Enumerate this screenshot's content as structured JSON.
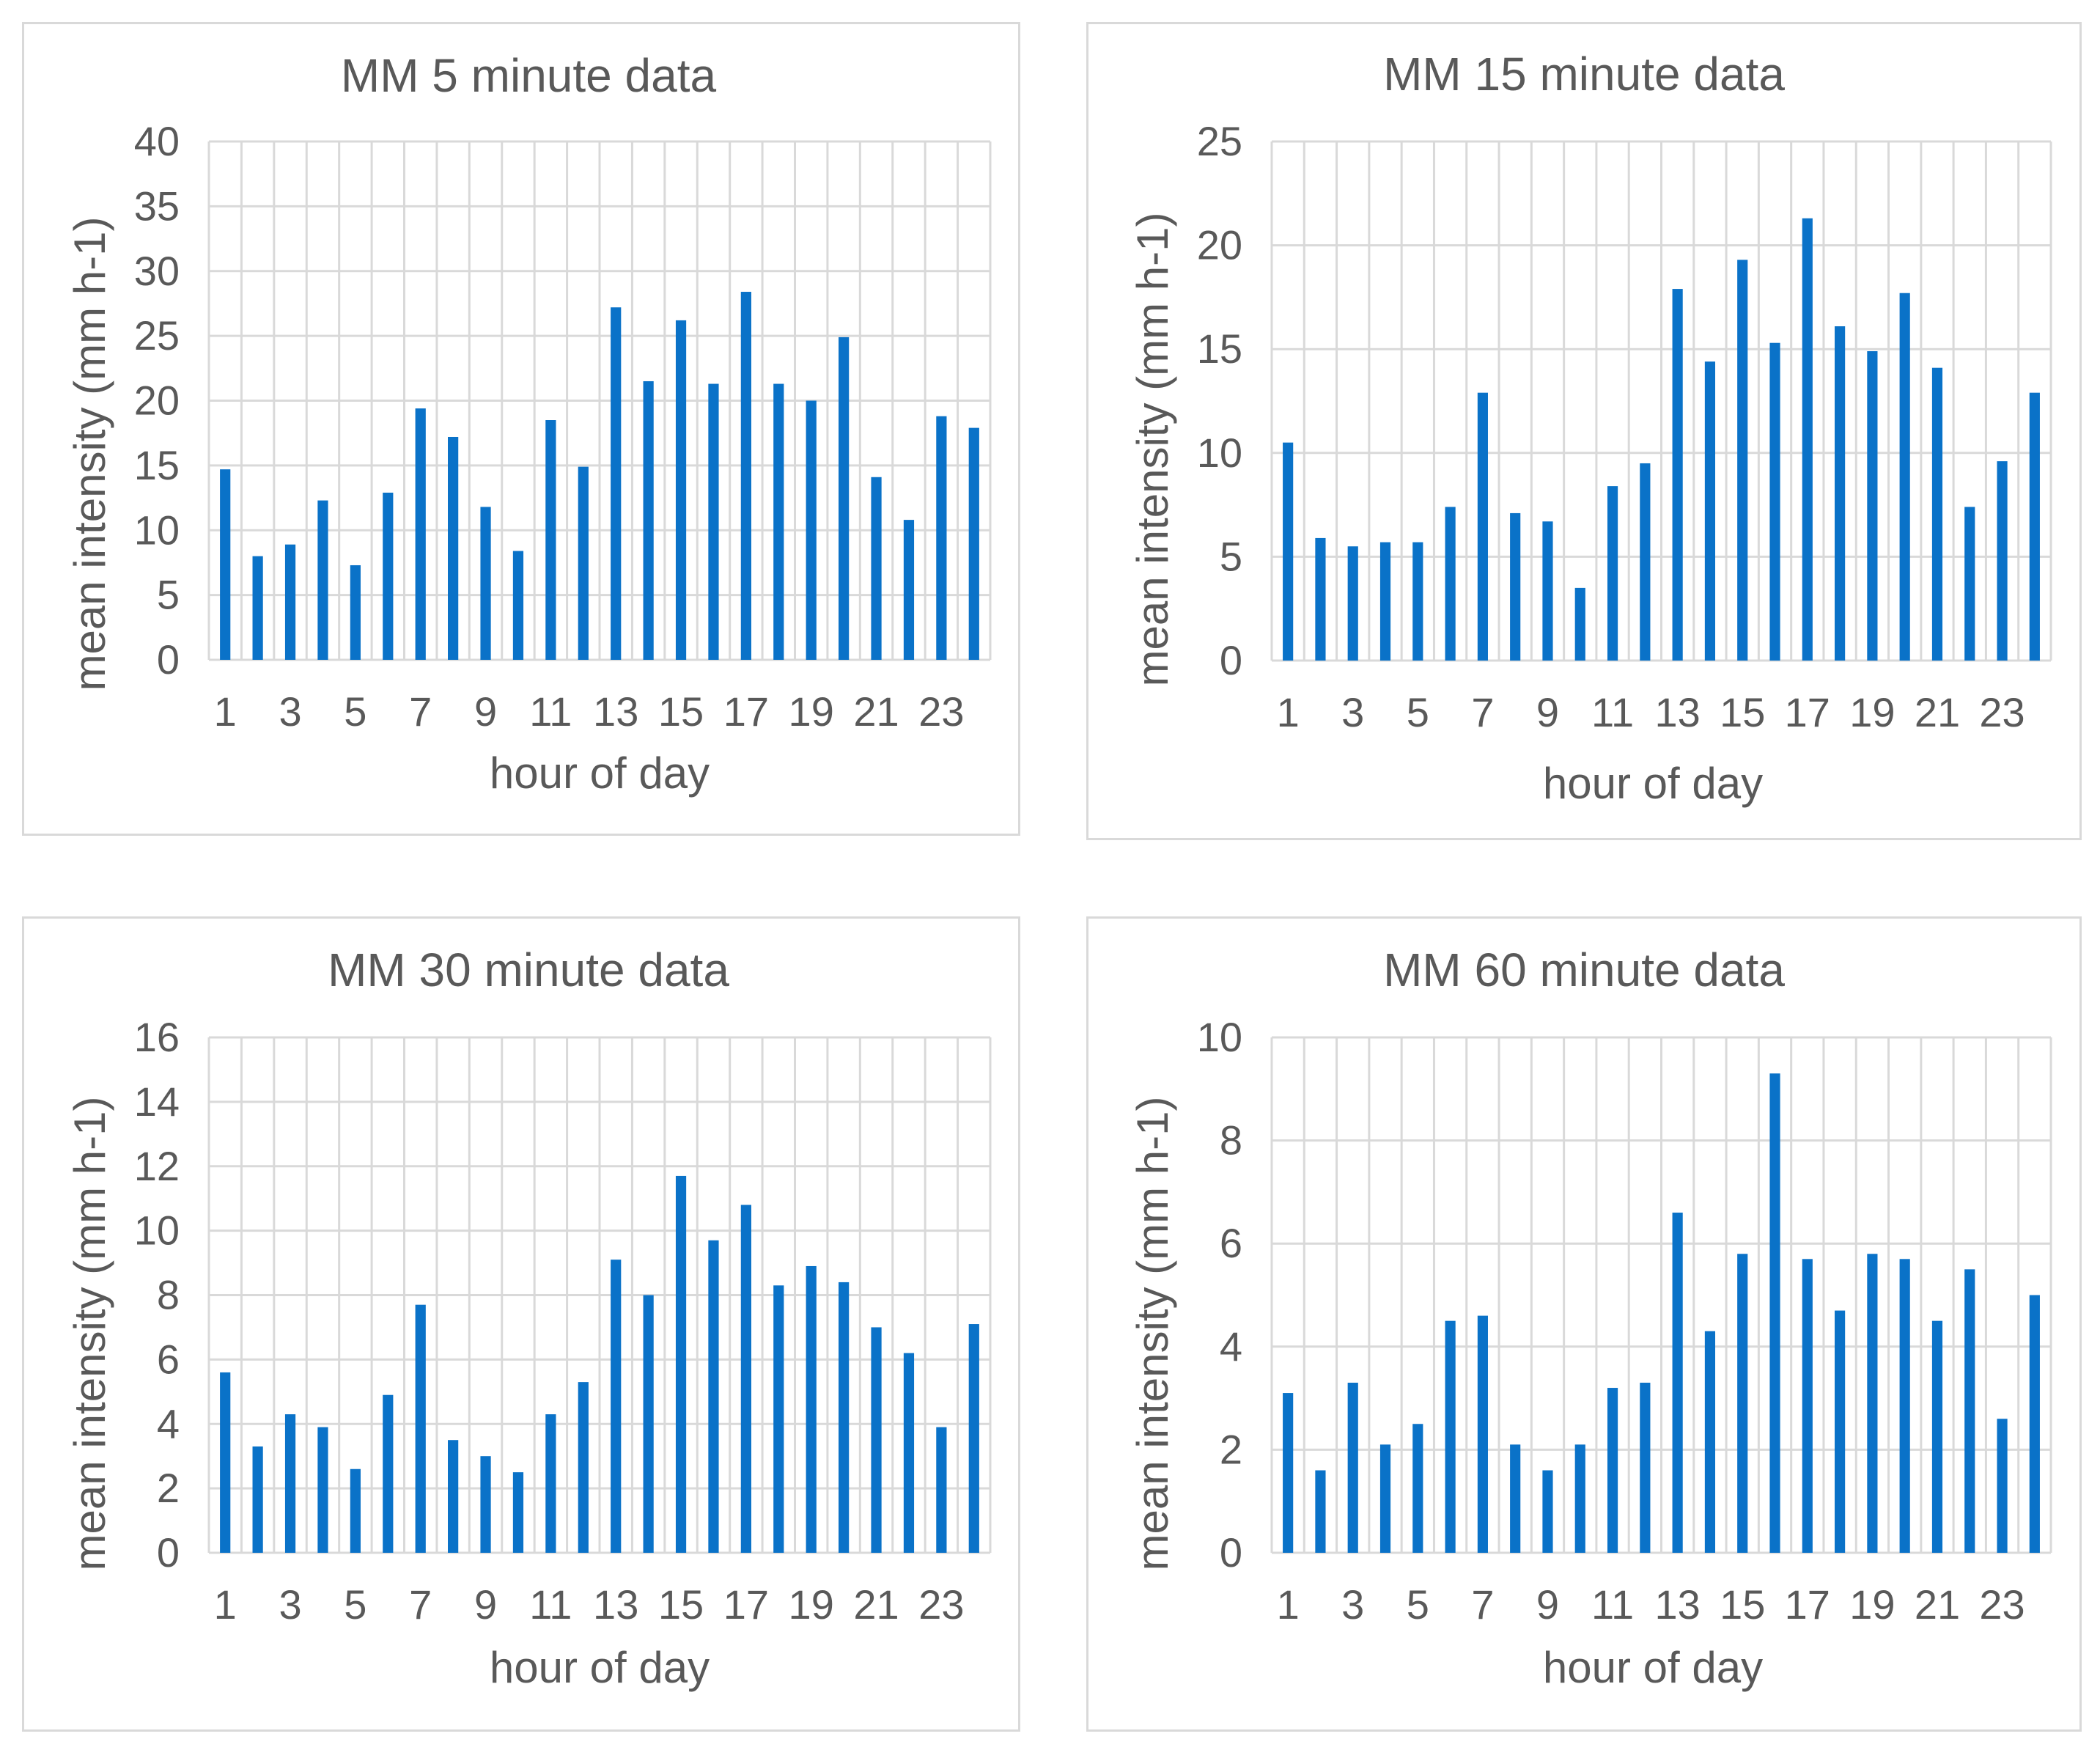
{
  "chart_data": [
    {
      "type": "bar",
      "title": "MM 5 minute data",
      "xlabel": "hour of day",
      "ylabel": "mean intensity (mm h-1)",
      "categories": [
        1,
        2,
        3,
        4,
        5,
        6,
        7,
        8,
        9,
        10,
        11,
        12,
        13,
        14,
        15,
        16,
        17,
        18,
        19,
        20,
        21,
        22,
        23,
        24
      ],
      "x_tick_labels": [
        "1",
        "3",
        "5",
        "7",
        "9",
        "11",
        "13",
        "15",
        "17",
        "19",
        "21",
        "23"
      ],
      "y_ticks": [
        "0",
        "5",
        "10",
        "15",
        "20",
        "25",
        "30",
        "35",
        "40"
      ],
      "ylim": [
        0,
        40
      ],
      "grid": true,
      "color": "#0a72c8",
      "values": [
        14.7,
        8.0,
        8.9,
        12.3,
        7.3,
        12.9,
        19.4,
        17.2,
        11.8,
        8.4,
        18.5,
        14.9,
        27.2,
        21.5,
        26.2,
        21.3,
        28.4,
        21.3,
        20.0,
        24.9,
        14.1,
        10.8,
        18.8,
        17.9
      ]
    },
    {
      "type": "bar",
      "title": "MM 15 minute data",
      "xlabel": "hour of day",
      "ylabel": "mean intensity (mm h-1)",
      "categories": [
        1,
        2,
        3,
        4,
        5,
        6,
        7,
        8,
        9,
        10,
        11,
        12,
        13,
        14,
        15,
        16,
        17,
        18,
        19,
        20,
        21,
        22,
        23,
        24
      ],
      "x_tick_labels": [
        "1",
        "3",
        "5",
        "7",
        "9",
        "11",
        "13",
        "15",
        "17",
        "19",
        "21",
        "23"
      ],
      "y_ticks": [
        "0",
        "5",
        "10",
        "15",
        "20",
        "25"
      ],
      "ylim": [
        0,
        25
      ],
      "grid": true,
      "color": "#0a72c8",
      "values": [
        10.5,
        5.9,
        5.5,
        5.7,
        5.7,
        7.4,
        12.9,
        7.1,
        6.7,
        3.5,
        8.4,
        9.5,
        17.9,
        14.4,
        19.3,
        15.3,
        21.3,
        16.1,
        14.9,
        17.7,
        14.1,
        7.4,
        9.6,
        12.9
      ]
    },
    {
      "type": "bar",
      "title": "MM 30 minute data",
      "xlabel": "hour of day",
      "ylabel": "mean intensity (mm h-1)",
      "categories": [
        1,
        2,
        3,
        4,
        5,
        6,
        7,
        8,
        9,
        10,
        11,
        12,
        13,
        14,
        15,
        16,
        17,
        18,
        19,
        20,
        21,
        22,
        23,
        24
      ],
      "x_tick_labels": [
        "1",
        "3",
        "5",
        "7",
        "9",
        "11",
        "13",
        "15",
        "17",
        "19",
        "21",
        "23"
      ],
      "y_ticks": [
        "0",
        "2",
        "4",
        "6",
        "8",
        "10",
        "12",
        "14",
        "16"
      ],
      "ylim": [
        0,
        16
      ],
      "grid": true,
      "color": "#0a72c8",
      "values": [
        5.6,
        3.3,
        4.3,
        3.9,
        2.6,
        4.9,
        7.7,
        3.5,
        3.0,
        2.5,
        4.3,
        5.3,
        9.1,
        8.0,
        11.7,
        9.7,
        10.8,
        8.3,
        8.9,
        8.4,
        7.0,
        6.2,
        3.9,
        7.1
      ]
    },
    {
      "type": "bar",
      "title": "MM 60 minute data",
      "xlabel": "hour of day",
      "ylabel": "mean intensity (mm h-1)",
      "categories": [
        1,
        2,
        3,
        4,
        5,
        6,
        7,
        8,
        9,
        10,
        11,
        12,
        13,
        14,
        15,
        16,
        17,
        18,
        19,
        20,
        21,
        22,
        23,
        24
      ],
      "x_tick_labels": [
        "1",
        "3",
        "5",
        "7",
        "9",
        "11",
        "13",
        "15",
        "17",
        "19",
        "21",
        "23"
      ],
      "y_ticks": [
        "0",
        "2",
        "4",
        "6",
        "8",
        "10"
      ],
      "ylim": [
        0,
        10
      ],
      "grid": true,
      "color": "#0a72c8",
      "values": [
        3.1,
        1.6,
        3.3,
        2.1,
        2.5,
        4.5,
        4.6,
        2.1,
        1.6,
        2.1,
        3.2,
        3.3,
        6.6,
        4.3,
        5.8,
        9.3,
        5.7,
        4.7,
        5.8,
        5.7,
        4.5,
        5.5,
        2.6,
        5.0
      ]
    }
  ]
}
